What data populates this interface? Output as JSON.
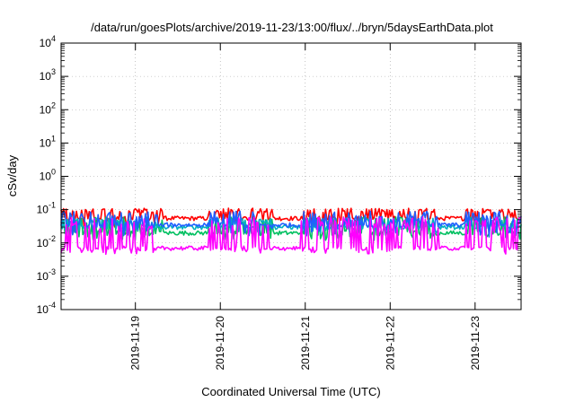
{
  "chart_data": {
    "type": "line",
    "title": "/data/run/goesPlots/archive/2019-11-23/13:00/flux/../bryn/5daysEarthData.plot",
    "xlabel": "Coordinated Universal Time (UTC)",
    "ylabel": "cSv/day",
    "yscale": "log",
    "ylim_exponents": [
      -4,
      4
    ],
    "y_ticks": [
      {
        "base": "10",
        "exp": "4"
      },
      {
        "base": "10",
        "exp": "3"
      },
      {
        "base": "10",
        "exp": "2"
      },
      {
        "base": "10",
        "exp": "1"
      },
      {
        "base": "10",
        "exp": "0"
      },
      {
        "base": "10",
        "exp": "-1"
      },
      {
        "base": "10",
        "exp": "-2"
      },
      {
        "base": "10",
        "exp": "-3"
      },
      {
        "base": "10",
        "exp": "-4"
      }
    ],
    "x_ticks": [
      "2019-11-19",
      "2019-11-20",
      "2019-11-21",
      "2019-11-22",
      "2019-11-23"
    ],
    "xlim": [
      "2019-11-18T03:00",
      "2019-11-23T13:00"
    ],
    "grid": true,
    "series": [
      {
        "color": "#ff0000",
        "baseline": 0.055,
        "spike_min": 0.08,
        "spike_max": 0.11,
        "dip_min": 0.03
      },
      {
        "color": "#00c060",
        "baseline": 0.02,
        "spike_min": 0.035,
        "spike_max": 0.06,
        "dip_min": 0.012
      },
      {
        "color": "#00b0c0",
        "baseline": 0.03,
        "spike_min": 0.04,
        "spike_max": 0.055,
        "dip_min": 0.02
      },
      {
        "color": "#2060ff",
        "baseline": 0.035,
        "spike_min": 0.05,
        "spike_max": 0.09,
        "dip_min": 0.015
      },
      {
        "color": "#ff00ff",
        "baseline": 0.007,
        "spike_min": 0.02,
        "spike_max": 0.06,
        "dip_min": 0.0045
      }
    ]
  }
}
